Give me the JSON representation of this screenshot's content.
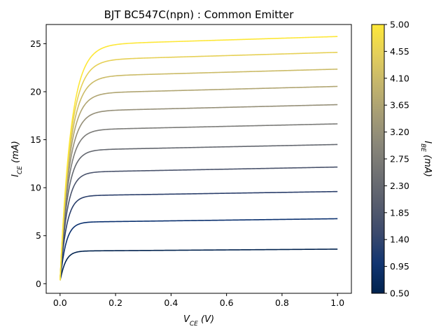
{
  "chart_data": {
    "type": "line",
    "title": "BJT BC547C(npn) : Common Emitter",
    "xlabel": {
      "main": "V",
      "sub": "CE",
      "unit": "(V)"
    },
    "ylabel": {
      "main": "I",
      "sub": "CE",
      "unit": "(mA)"
    },
    "xlim": [
      -0.05,
      1.05
    ],
    "ylim": [
      -1.0,
      27.0
    ],
    "xticks": [
      0.0,
      0.2,
      0.4,
      0.6,
      0.8,
      1.0
    ],
    "xtick_labels": [
      "0.0",
      "0.2",
      "0.4",
      "0.6",
      "0.8",
      "1.0"
    ],
    "yticks": [
      0,
      5,
      10,
      15,
      20,
      25
    ],
    "ytick_labels": [
      "0",
      "5",
      "10",
      "15",
      "20",
      "25"
    ],
    "grid": false,
    "colormap": "cividis",
    "colorbar": {
      "label": {
        "main": "I",
        "sub": "BE",
        "unit": "(mA)"
      },
      "range": [
        0.5,
        5.0
      ],
      "ticks": [
        0.5,
        0.95,
        1.4,
        1.85,
        2.3,
        2.75,
        3.2,
        3.65,
        4.1,
        4.55,
        5.0
      ],
      "tick_labels": [
        "0.50",
        "0.95",
        "1.40",
        "1.85",
        "2.30",
        "2.75",
        "3.20",
        "3.65",
        "4.10",
        "4.55",
        "5.00"
      ],
      "stops": [
        "#00224e",
        "#123570",
        "#3b496c",
        "#575d6d",
        "#707173",
        "#8a8779",
        "#a69d75",
        "#c4b56c",
        "#e4cf5b",
        "#fee838"
      ]
    },
    "curve_model": "I = (Isat + slope*V) * (1 - exp(-V/tau)); each series gives Isat (mA at V=0), slope (mA/V), tau (V)",
    "series": [
      {
        "ibe": 0.5,
        "isat": 3.4,
        "slope": 0.2,
        "tau": 0.018
      },
      {
        "ibe": 1.0,
        "isat": 6.4,
        "slope": 0.37,
        "tau": 0.02
      },
      {
        "ibe": 1.5,
        "isat": 9.15,
        "slope": 0.45,
        "tau": 0.022
      },
      {
        "ibe": 2.0,
        "isat": 11.6,
        "slope": 0.55,
        "tau": 0.024
      },
      {
        "ibe": 2.5,
        "isat": 13.9,
        "slope": 0.6,
        "tau": 0.026
      },
      {
        "ibe": 3.0,
        "isat": 16.0,
        "slope": 0.65,
        "tau": 0.028
      },
      {
        "ibe": 3.5,
        "isat": 17.95,
        "slope": 0.7,
        "tau": 0.03
      },
      {
        "ibe": 4.0,
        "isat": 19.8,
        "slope": 0.75,
        "tau": 0.032
      },
      {
        "ibe": 4.5,
        "isat": 21.55,
        "slope": 0.8,
        "tau": 0.034
      },
      {
        "ibe": 5.0,
        "isat": 23.25,
        "slope": 0.85,
        "tau": 0.036
      },
      {
        "ibe": 5.0,
        "isat": 24.85,
        "slope": 0.9,
        "tau": 0.038
      }
    ],
    "series_colors": [
      "#00224e",
      "#0a306f",
      "#2b3f6b",
      "#4a536c",
      "#63676f",
      "#7b7b78",
      "#958f78",
      "#b0a572",
      "#cbbb67",
      "#e6d056",
      "#fde737"
    ]
  }
}
